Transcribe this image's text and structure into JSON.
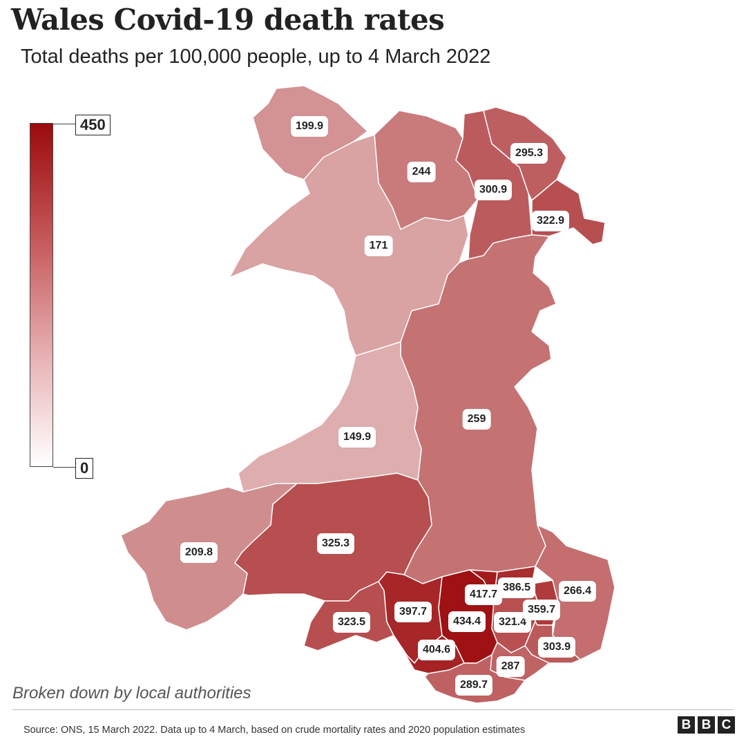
{
  "header": {
    "title": "Wales Covid-19 death rates",
    "subtitle": "Total deaths per 100,000 people, up to 4 March 2022"
  },
  "legend": {
    "max_label": "450",
    "min_label": "0",
    "max_value": 450,
    "min_value": 0,
    "color_high": "#9b0a0c",
    "color_low": "#ffffff"
  },
  "regions": [
    {
      "id": "anglesey",
      "value": 199.9,
      "label": "199.9"
    },
    {
      "id": "conwy",
      "value": 244,
      "label": "244"
    },
    {
      "id": "gwynedd",
      "value": 171,
      "label": "171"
    },
    {
      "id": "denbighshire",
      "value": 300.9,
      "label": "300.9"
    },
    {
      "id": "flintshire",
      "value": 295.3,
      "label": "295.3"
    },
    {
      "id": "wrexham",
      "value": 322.9,
      "label": "322.9"
    },
    {
      "id": "powys",
      "value": 259,
      "label": "259"
    },
    {
      "id": "ceredigion",
      "value": 149.9,
      "label": "149.9"
    },
    {
      "id": "pembrokeshire",
      "value": 209.8,
      "label": "209.8"
    },
    {
      "id": "carmarthenshire",
      "value": 325.3,
      "label": "325.3"
    },
    {
      "id": "swansea",
      "value": 323.5,
      "label": "323.5"
    },
    {
      "id": "neath-port-talbot",
      "value": 397.7,
      "label": "397.7"
    },
    {
      "id": "bridgend",
      "value": 404.6,
      "label": "404.6"
    },
    {
      "id": "rhondda-cynon-taf",
      "value": 434.4,
      "label": "434.4"
    },
    {
      "id": "merthyr-tydfil",
      "value": 417.7,
      "label": "417.7"
    },
    {
      "id": "blaenau-gwent",
      "value": 386.5,
      "label": "386.5"
    },
    {
      "id": "caerphilly",
      "value": 321.4,
      "label": "321.4"
    },
    {
      "id": "torfaen",
      "value": 359.7,
      "label": "359.7"
    },
    {
      "id": "monmouthshire",
      "value": 266.4,
      "label": "266.4"
    },
    {
      "id": "newport",
      "value": 303.9,
      "label": "303.9"
    },
    {
      "id": "cardiff",
      "value": 287,
      "label": "287"
    },
    {
      "id": "vale-of-glamorgan",
      "value": 289.7,
      "label": "289.7"
    }
  ],
  "footer": {
    "note": "Broken down by local authorities",
    "source": "Source: ONS, 15 March 2022. Data up to 4 March, based on crude mortality rates and 2020 population estimates",
    "brand": [
      "B",
      "B",
      "C"
    ]
  }
}
